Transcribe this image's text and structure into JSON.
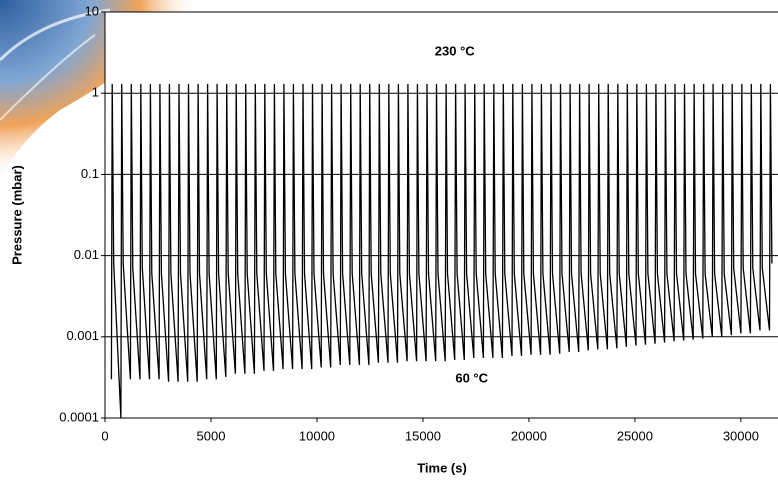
{
  "chart_data": {
    "type": "line",
    "xlabel": "Time (s)",
    "ylabel": "Pressure (mbar)",
    "annotations": [
      {
        "text": "230 °C",
        "x": 16500,
        "y": 3.2
      },
      {
        "text": "60 °C",
        "x": 17300,
        "y": 0.0003
      }
    ],
    "log_y": true,
    "grid": true,
    "xlim": [
      0,
      31750
    ],
    "xticks": [
      0,
      5000,
      10000,
      15000,
      20000,
      25000,
      30000
    ],
    "ylim": [
      0.0001,
      10
    ],
    "yticks": [
      0.0001,
      0.001,
      0.01,
      0.1,
      1,
      10
    ],
    "series": [
      {
        "name": "Pressure",
        "color": "#000000",
        "x": [
          300,
          340,
          410,
          750,
          790,
          860,
          1200,
          1240,
          1310,
          1650,
          1690,
          1760,
          2100,
          2140,
          2210,
          2550,
          2590,
          2660,
          3000,
          3040,
          3110,
          3450,
          3490,
          3560,
          3900,
          3940,
          4010,
          4350,
          4390,
          4460,
          4800,
          4840,
          4910,
          5250,
          5290,
          5360,
          5700,
          5740,
          5810,
          6150,
          6190,
          6260,
          6600,
          6640,
          6710,
          7050,
          7090,
          7160,
          7500,
          7540,
          7610,
          7950,
          7990,
          8060,
          8400,
          8440,
          8510,
          8850,
          8890,
          8960,
          9300,
          9340,
          9410,
          9750,
          9790,
          9860,
          10200,
          10240,
          10310,
          10650,
          10690,
          10760,
          11100,
          11140,
          11210,
          11550,
          11590,
          11660,
          12000,
          12040,
          12110,
          12450,
          12490,
          12560,
          12900,
          12940,
          13010,
          13350,
          13390,
          13460,
          13800,
          13840,
          13910,
          14250,
          14290,
          14360,
          14700,
          14740,
          14810,
          15150,
          15190,
          15260,
          15600,
          15640,
          15710,
          16050,
          16090,
          16160,
          16500,
          16540,
          16610,
          16950,
          16990,
          17060,
          17400,
          17440,
          17510,
          17850,
          17890,
          17960,
          18300,
          18340,
          18410,
          18750,
          18790,
          18860,
          19200,
          19240,
          19310,
          19650,
          19690,
          19760,
          20100,
          20140,
          20210,
          20550,
          20590,
          20660,
          21000,
          21040,
          21110,
          21450,
          21490,
          21560,
          21900,
          21940,
          22010,
          22350,
          22390,
          22460,
          22800,
          22840,
          22910,
          23250,
          23290,
          23360,
          23700,
          23740,
          23810,
          24150,
          24190,
          24260,
          24600,
          24640,
          24710,
          25050,
          25090,
          25160,
          25500,
          25540,
          25610,
          25950,
          25990,
          26060,
          26400,
          26440,
          26510,
          26850,
          26890,
          26960,
          27300,
          27340,
          27410,
          27750,
          27790,
          27860,
          28200,
          28240,
          28310,
          28650,
          28690,
          28760,
          29100,
          29140,
          29210,
          29550,
          29590,
          29660,
          30000,
          30040,
          30110,
          30450,
          30490,
          30560,
          30900,
          30940,
          31010,
          31350,
          31390,
          31460
        ],
        "values": [
          0.0003,
          1.3,
          0.008,
          0.0001,
          1.3,
          0.008,
          0.0003,
          1.3,
          0.007,
          0.0003,
          1.3,
          0.007,
          0.0003,
          1.3,
          0.006,
          0.0003,
          1.3,
          0.006,
          0.00028,
          1.3,
          0.006,
          0.00028,
          1.3,
          0.006,
          0.00028,
          1.3,
          0.006,
          0.00028,
          1.3,
          0.006,
          0.0003,
          1.3,
          0.006,
          0.0003,
          1.3,
          0.006,
          0.00032,
          1.3,
          0.006,
          0.00035,
          1.3,
          0.006,
          0.00035,
          1.3,
          0.006,
          0.00035,
          1.3,
          0.006,
          0.00038,
          1.3,
          0.006,
          0.00038,
          1.3,
          0.006,
          0.0004,
          1.3,
          0.006,
          0.0004,
          1.3,
          0.006,
          0.0004,
          1.3,
          0.006,
          0.0004,
          1.3,
          0.006,
          0.00042,
          1.3,
          0.006,
          0.00042,
          1.3,
          0.006,
          0.00045,
          1.3,
          0.006,
          0.00045,
          1.3,
          0.006,
          0.00045,
          1.3,
          0.006,
          0.00045,
          1.3,
          0.006,
          0.00048,
          1.3,
          0.006,
          0.00048,
          1.3,
          0.006,
          0.00048,
          1.3,
          0.006,
          0.0005,
          1.3,
          0.006,
          0.0005,
          1.3,
          0.006,
          0.0005,
          1.3,
          0.006,
          0.0005,
          1.3,
          0.006,
          0.0005,
          1.3,
          0.006,
          0.00052,
          1.3,
          0.006,
          0.00052,
          1.3,
          0.006,
          0.00055,
          1.3,
          0.006,
          0.00055,
          1.3,
          0.006,
          0.00055,
          1.3,
          0.006,
          0.00055,
          1.3,
          0.006,
          0.00058,
          1.3,
          0.006,
          0.00058,
          1.3,
          0.006,
          0.0006,
          1.3,
          0.006,
          0.0006,
          1.3,
          0.006,
          0.0006,
          1.3,
          0.006,
          0.00062,
          1.3,
          0.006,
          0.00065,
          1.3,
          0.006,
          0.00065,
          1.3,
          0.006,
          0.00068,
          1.3,
          0.006,
          0.0007,
          1.3,
          0.006,
          0.0007,
          1.3,
          0.006,
          0.00072,
          1.3,
          0.006,
          0.00075,
          1.3,
          0.006,
          0.00078,
          1.3,
          0.006,
          0.0008,
          1.3,
          0.006,
          0.00082,
          1.3,
          0.006,
          0.00085,
          1.3,
          0.006,
          0.00088,
          1.3,
          0.006,
          0.0009,
          1.3,
          0.006,
          0.00092,
          1.3,
          0.006,
          0.00095,
          1.3,
          0.006,
          0.001,
          1.3,
          0.006,
          0.001,
          1.3,
          0.006,
          0.00105,
          1.3,
          0.007,
          0.0011,
          1.3,
          0.007,
          0.0011,
          1.3,
          0.007,
          0.0012,
          1.3,
          0.007,
          0.0012,
          1.3,
          0.008
        ]
      }
    ]
  }
}
